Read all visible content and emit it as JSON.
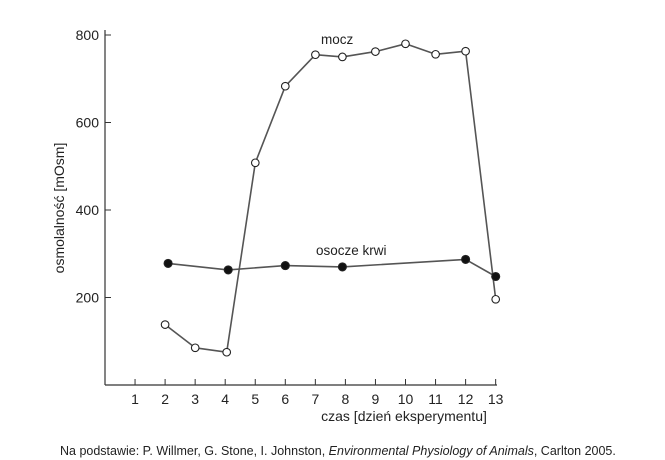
{
  "chart_data": {
    "type": "line",
    "xlabel": "czas [dzień eksperymentu]",
    "ylabel": "osmolalność [mOsm]",
    "xlim": [
      0,
      13
    ],
    "ylim": [
      0,
      800
    ],
    "x_ticks": [
      1,
      2,
      3,
      4,
      5,
      6,
      7,
      8,
      9,
      10,
      11,
      12,
      13
    ],
    "y_ticks": [
      200,
      400,
      600,
      800
    ],
    "grid": false,
    "series": [
      {
        "name": "mocz",
        "marker": "open-circle",
        "color": "#555555",
        "points": [
          {
            "x": 2,
            "y": 138
          },
          {
            "x": 3,
            "y": 85
          },
          {
            "x": 4.05,
            "y": 75
          },
          {
            "x": 5,
            "y": 508
          },
          {
            "x": 6,
            "y": 683
          },
          {
            "x": 7,
            "y": 755
          },
          {
            "x": 7.9,
            "y": 750
          },
          {
            "x": 9,
            "y": 762
          },
          {
            "x": 10,
            "y": 780
          },
          {
            "x": 11,
            "y": 756
          },
          {
            "x": 12,
            "y": 763
          },
          {
            "x": 13,
            "y": 196
          }
        ]
      },
      {
        "name": "osocze krwi",
        "marker": "filled-circle",
        "color": "#555555",
        "points": [
          {
            "x": 2.1,
            "y": 278
          },
          {
            "x": 4.1,
            "y": 263
          },
          {
            "x": 6,
            "y": 273
          },
          {
            "x": 7.9,
            "y": 270
          },
          {
            "x": 12,
            "y": 287
          },
          {
            "x": 13,
            "y": 248
          }
        ]
      }
    ]
  },
  "source_note": {
    "prefix": "Na podstawie: P. Willmer, G. Stone, I. Johnston, ",
    "title": "Environmental Physiology of Animals",
    "suffix": ", Carlton 2005."
  }
}
